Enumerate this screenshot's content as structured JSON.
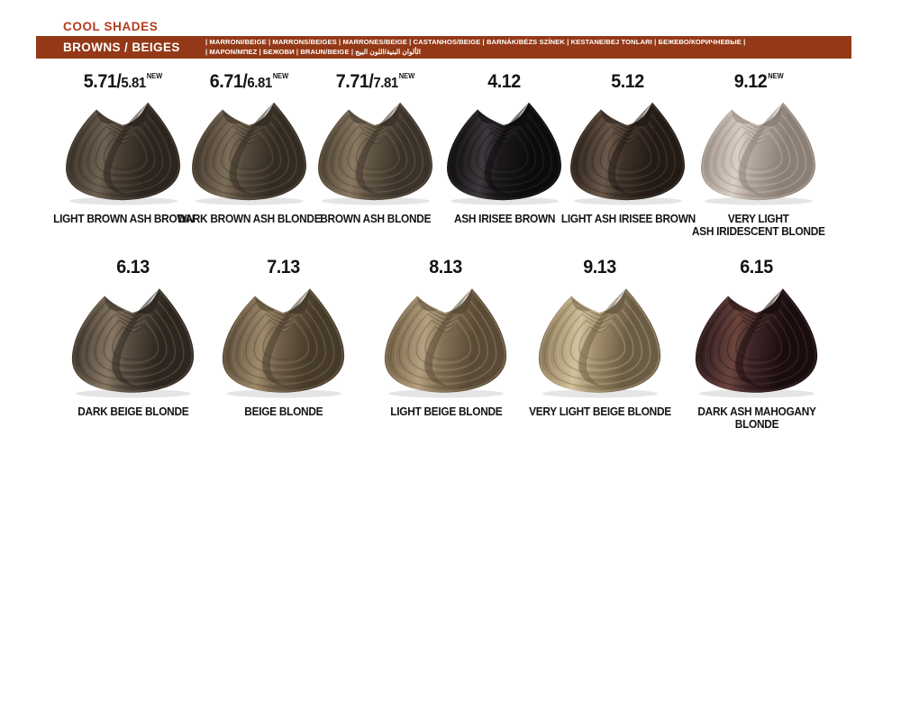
{
  "header": {
    "category_label": "COOL SHADES",
    "category_color": "#b13d1e",
    "bar_color": "#943917",
    "bar_title": "BROWNS / BEIGES",
    "translations_line1": "| MARRONI/BEIGE |  MARRONS/BEIGES |  MARRONES/BEIGE | CASTANHOS/BEIGE | BARNÁK/BÉZS SZÍNEK | KESTANE/BEJ TONLARI | БЕЖЕВО/КОРИЧНЕВЫЕ |",
    "translations_line2": "| ΜΑΡΟΝ/ΜΠΕΖ | БЕЖОВИ | BRAUN/BEIGE | الألوان البنية/اللون البيج"
  },
  "rows": [
    {
      "cells": [
        {
          "code_main": "5.71/",
          "code_alt": "5.81",
          "new_label": "NEW",
          "name": "LIGHT BROWN ASH BROWN",
          "colors": {
            "dark": "#2b251e",
            "base": "#4a4034",
            "light": "#6e6252"
          }
        },
        {
          "code_main": "6.71/",
          "code_alt": "6.81",
          "new_label": "NEW",
          "name": "DARK BROWN ASH BLONDE",
          "colors": {
            "dark": "#332c23",
            "base": "#564a3b",
            "light": "#7c6e5a"
          }
        },
        {
          "code_main": "7.71/",
          "code_alt": "7.81",
          "new_label": "NEW",
          "name": "BROWN ASH BLONDE",
          "colors": {
            "dark": "#3b332a",
            "base": "#615443",
            "light": "#8a7962"
          }
        },
        {
          "code_main": "4.12",
          "code_alt": "",
          "new_label": "",
          "name": "ASH IRISEE BROWN",
          "colors": {
            "dark": "#0c0b0d",
            "base": "#1c191b",
            "light": "#3d383d"
          }
        },
        {
          "code_main": "5.12",
          "code_alt": "",
          "new_label": "",
          "name": "LIGHT ASH IRISEE BROWN",
          "colors": {
            "dark": "#221a15",
            "base": "#3f3229",
            "light": "#6b594a"
          }
        },
        {
          "code_main": "9.12",
          "code_alt": "",
          "new_label": "NEW",
          "name": "VERY LIGHT\nASH IRIDESCENT BLONDE",
          "colors": {
            "dark": "#8b7f76",
            "base": "#b2a59b",
            "light": "#d8cfc6"
          }
        }
      ]
    },
    {
      "cells": [
        {
          "code_main": "6.13",
          "code_alt": "",
          "new_label": "",
          "name": "DARK BEIGE BLONDE",
          "colors": {
            "dark": "#2d261f",
            "base": "#584d40",
            "light": "#877864"
          }
        },
        {
          "code_main": "7.13",
          "code_alt": "",
          "new_label": "",
          "name": "BEIGE BLONDE",
          "colors": {
            "dark": "#463a2a",
            "base": "#71604a",
            "light": "#9e8a6b"
          }
        },
        {
          "code_main": "8.13",
          "code_alt": "",
          "new_label": "",
          "name": "LIGHT BEIGE BLONDE",
          "colors": {
            "dark": "#5a4b36",
            "base": "#877457",
            "light": "#b5a181"
          }
        },
        {
          "code_main": "9.13",
          "code_alt": "",
          "new_label": "",
          "name": "VERY LIGHT BEIGE BLONDE",
          "colors": {
            "dark": "#6b5c44",
            "base": "#a3906e",
            "light": "#d3c29e"
          }
        },
        {
          "code_main": "6.15",
          "code_alt": "",
          "new_label": "",
          "name": "DARK ASH MAHOGANY BLONDE",
          "colors": {
            "dark": "#190d0f",
            "base": "#3f2628",
            "light": "#6b453d"
          }
        }
      ]
    }
  ]
}
